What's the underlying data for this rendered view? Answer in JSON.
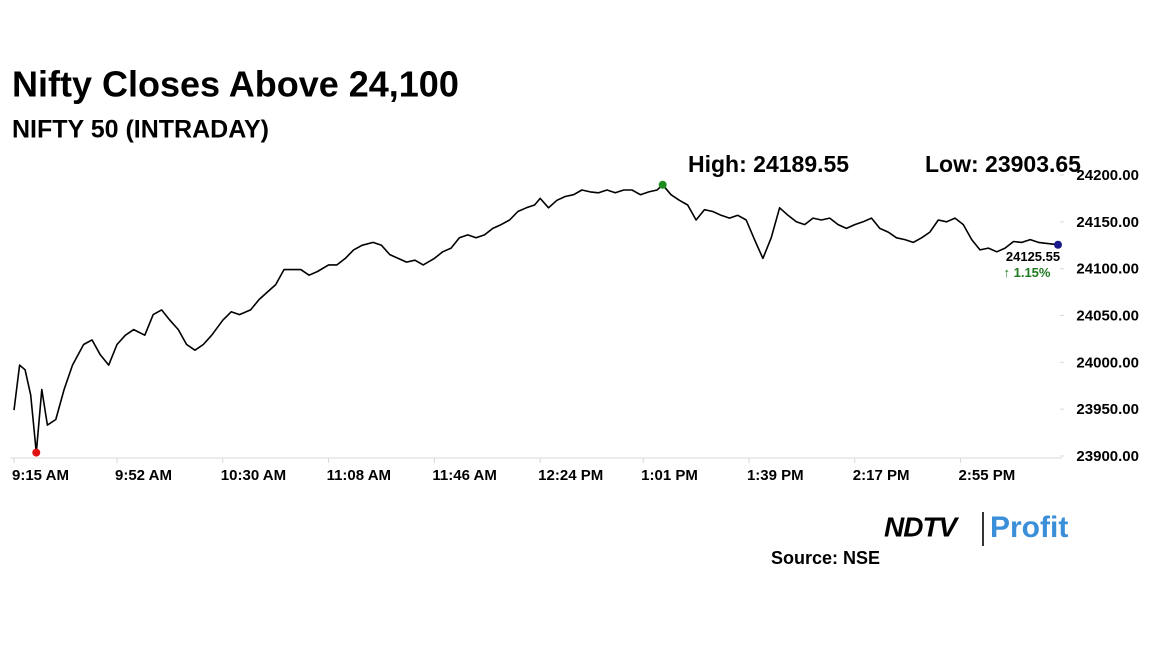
{
  "chart_data": {
    "type": "line",
    "title": "Nifty Closes Above 24,100",
    "subtitle": "NIFTY 50 (INTRADAY)",
    "high_label": "High: 24189.55",
    "low_label": "Low: 23903.65",
    "last_label": "24125.55",
    "change_label": "↑ 1.15%",
    "source": "Source: NSE",
    "logo": [
      "NDTV",
      "Profit"
    ],
    "color": "#000000",
    "high_color": "#1e8c1e",
    "low_color": "#e01010",
    "last_color": "#1a1a8c",
    "change_color": "#1e7a1e",
    "x": [
      "9:15 AM",
      "9:17 AM",
      "9:19 AM",
      "9:21 AM",
      "9:23 AM",
      "9:25 AM",
      "9:27 AM",
      "9:30 AM",
      "9:33 AM",
      "9:36 AM",
      "9:40 AM",
      "9:43 AM",
      "9:46 AM",
      "9:49 AM",
      "9:52 AM",
      "9:55 AM",
      "9:58 AM",
      "10:02 AM",
      "10:05 AM",
      "10:08 AM",
      "10:11 AM",
      "10:14 AM",
      "10:17 AM",
      "10:20 AM",
      "10:23 AM",
      "10:26 AM",
      "10:30 AM",
      "10:33 AM",
      "10:36 AM",
      "10:40 AM",
      "10:43 AM",
      "10:46 AM",
      "10:49 AM",
      "10:52 AM",
      "10:55 AM",
      "10:58 AM",
      "11:01 AM",
      "11:04 AM",
      "11:08 AM",
      "11:11 AM",
      "11:14 AM",
      "11:17 AM",
      "11:20 AM",
      "11:24 AM",
      "11:27 AM",
      "11:30 AM",
      "11:33 AM",
      "11:36 AM",
      "11:39 AM",
      "11:42 AM",
      "11:46 AM",
      "11:49 AM",
      "11:52 AM",
      "11:55 AM",
      "11:58 AM",
      "12:01 PM",
      "12:04 PM",
      "12:07 PM",
      "12:10 PM",
      "12:13 PM",
      "12:16 PM",
      "12:19 PM",
      "12:22 PM",
      "12:24 PM",
      "12:27 PM",
      "12:30 PM",
      "12:33 PM",
      "12:36 PM",
      "12:39 PM",
      "12:42 PM",
      "12:45 PM",
      "12:48 PM",
      "12:51 PM",
      "12:54 PM",
      "12:57 PM",
      "1:00 PM",
      "1:03 PM",
      "1:06 PM",
      "1:08 PM",
      "1:11 PM",
      "1:14 PM",
      "1:17 PM",
      "1:20 PM",
      "1:23 PM",
      "1:26 PM",
      "1:29 PM",
      "1:32 PM",
      "1:35 PM",
      "1:38 PM",
      "1:41 PM",
      "1:44 PM",
      "1:47 PM",
      "1:50 PM",
      "1:53 PM",
      "1:56 PM",
      "1:59 PM",
      "2:02 PM",
      "2:05 PM",
      "2:08 PM",
      "2:11 PM",
      "2:14 PM",
      "2:17 PM",
      "2:20 PM",
      "2:23 PM",
      "2:26 PM",
      "2:29 PM",
      "2:32 PM",
      "2:35 PM",
      "2:38 PM",
      "2:41 PM",
      "2:44 PM",
      "2:47 PM",
      "2:50 PM",
      "2:53 PM",
      "2:56 PM",
      "2:59 PM",
      "3:02 PM",
      "3:05 PM",
      "3:08 PM",
      "3:11 PM",
      "3:14 PM",
      "3:17 PM",
      "3:20 PM",
      "3:23 PM",
      "3:26 PM",
      "3:30 PM"
    ],
    "values": [
      23949,
      23997,
      23992,
      23965,
      23903.65,
      23971,
      23933,
      23939,
      23971,
      23997,
      24019,
      24024,
      24008,
      23997,
      24019,
      24029,
      24035,
      24029,
      24051,
      24056,
      24045,
      24035,
      24019,
      24013,
      24019,
      24029,
      24045,
      24054,
      24051,
      24056,
      24067,
      24075,
      24083,
      24099,
      24099,
      24099,
      24093,
      24097,
      24104,
      24104,
      24111,
      24120,
      24125,
      24128,
      24125,
      24115,
      24111,
      24107,
      24109,
      24104,
      24111,
      24118,
      24122,
      24133,
      24136,
      24133,
      24136,
      24143,
      24147,
      24152,
      24161,
      24165,
      24168,
      24175,
      24165,
      24173,
      24177,
      24179,
      24184,
      24182,
      24181,
      24184,
      24181,
      24184,
      24184,
      24179,
      24182,
      24184,
      24189.55,
      24179,
      24173,
      24168,
      24152,
      24163,
      24161,
      24157,
      24154,
      24157,
      24152,
      24131,
      24111,
      24133,
      24165,
      24157,
      24150,
      24147,
      24154,
      24152,
      24154,
      24147,
      24143,
      24147,
      24150,
      24154,
      24143,
      24139,
      24133,
      24131,
      24128,
      24133,
      24139,
      24152,
      24150,
      24154,
      24147,
      24131,
      24120,
      24122,
      24118,
      24122,
      24129,
      24128,
      24131,
      24128,
      24127,
      24125.55
    ],
    "xlim": [
      "9:15 AM",
      "3:30 PM"
    ],
    "xticks": [
      "9:15 AM",
      "9:52 AM",
      "10:30 AM",
      "11:08 AM",
      "11:46 AM",
      "12:24 PM",
      "1:01 PM",
      "1:39 PM",
      "2:17 PM",
      "2:55 PM"
    ],
    "ylim": [
      23900,
      24200
    ],
    "yticks": [
      {
        "value": 23900,
        "label": "23900.00"
      },
      {
        "value": 23950,
        "label": "23950.00"
      },
      {
        "value": 24000,
        "label": "24000.00"
      },
      {
        "value": 24050,
        "label": "24050.00"
      },
      {
        "value": 24100,
        "label": "24100.00"
      },
      {
        "value": 24150,
        "label": "24150.00"
      },
      {
        "value": 24200,
        "label": "24200.00"
      }
    ]
  }
}
